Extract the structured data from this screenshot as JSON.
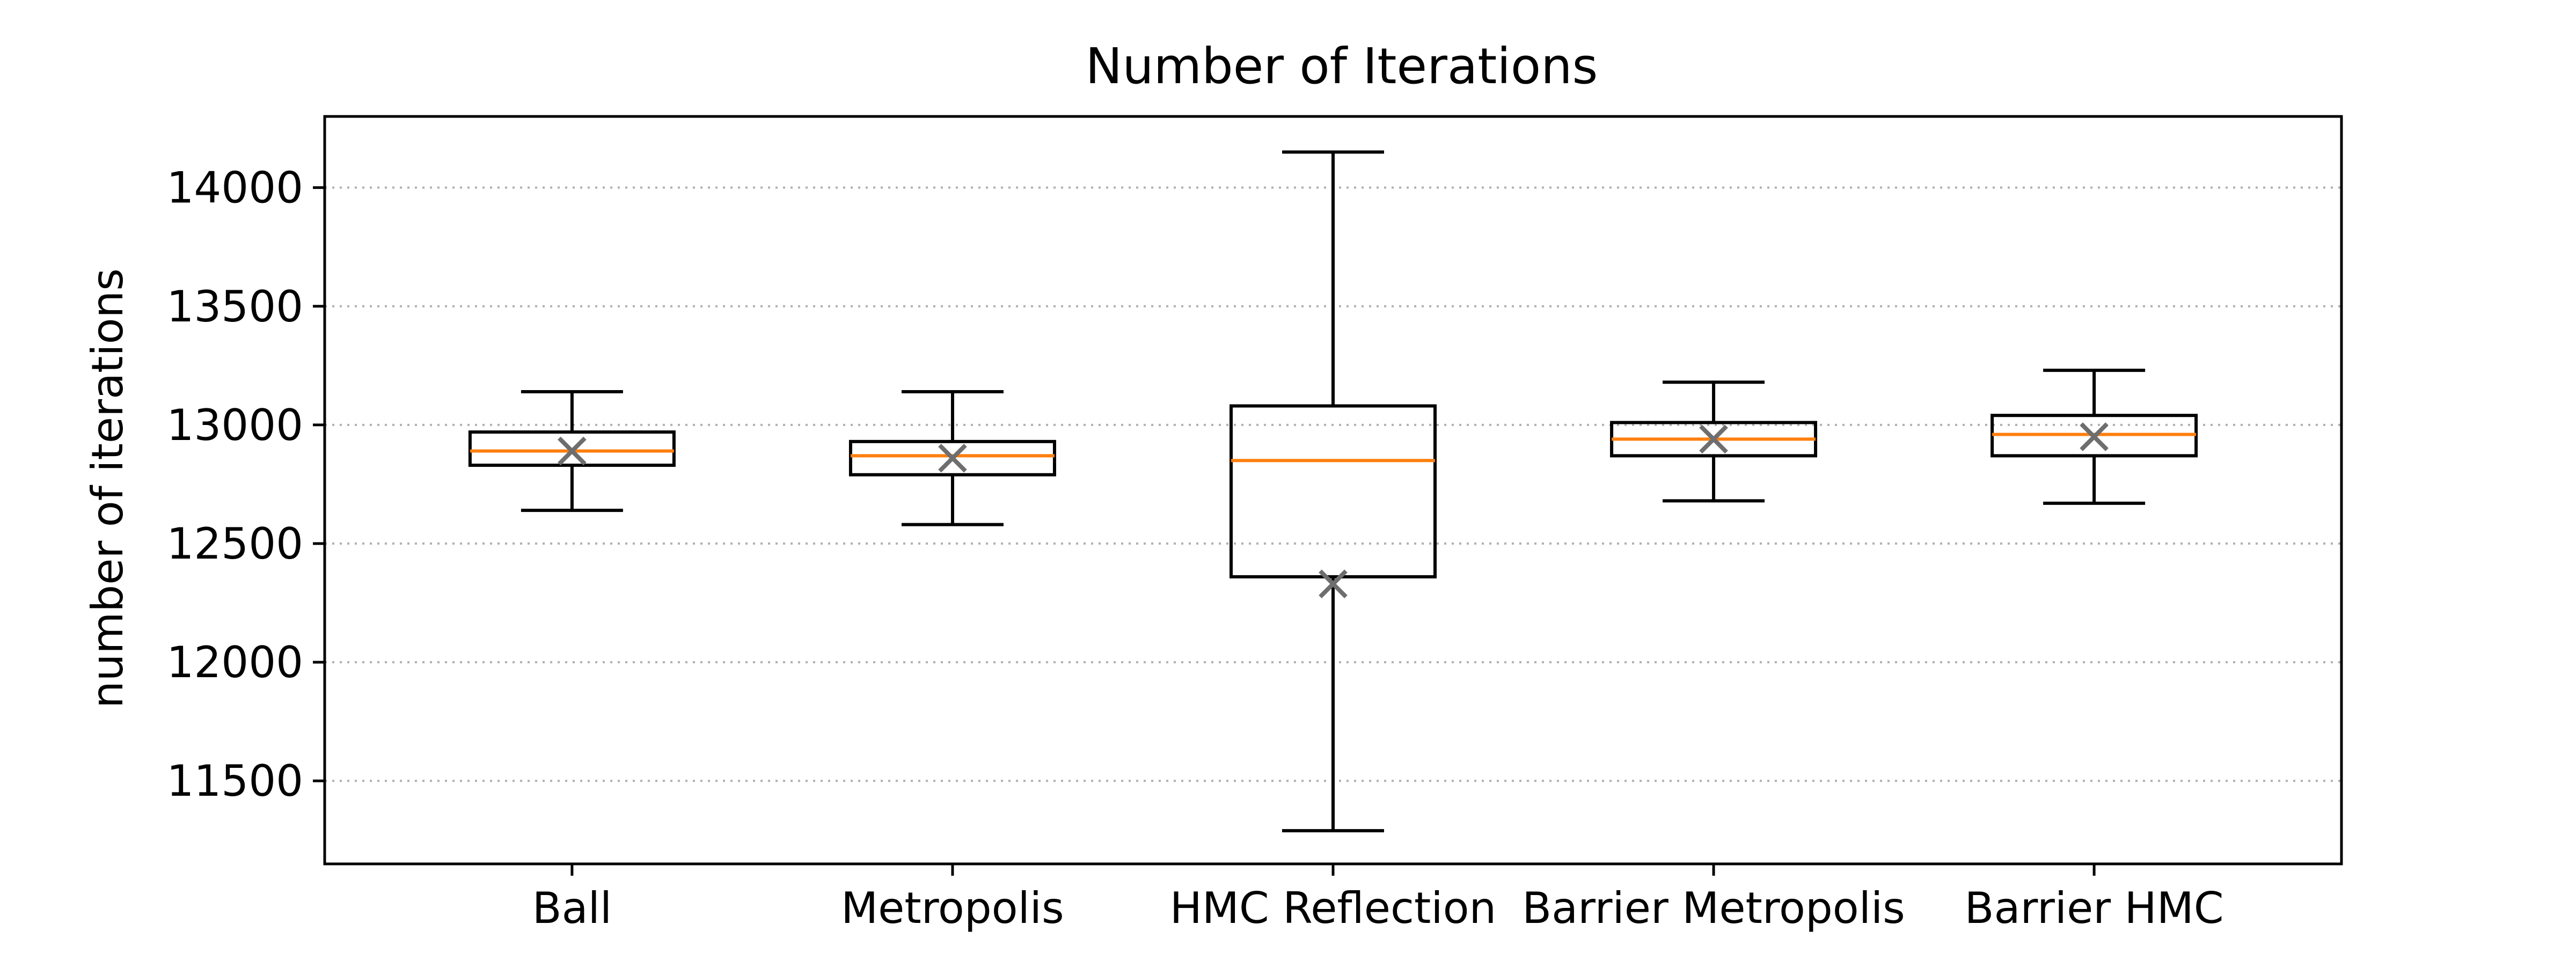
{
  "chart_data": {
    "type": "box",
    "title": "Number of Iterations",
    "xlabel": "",
    "ylabel": "number of iterations",
    "categories": [
      "Ball",
      "Metropolis",
      "HMC Reflection",
      "Barrier Metropolis",
      "Barrier HMC"
    ],
    "ylim": [
      11150,
      14300
    ],
    "yticks": [
      11500,
      12000,
      12500,
      13000,
      13500,
      14000
    ],
    "grid": {
      "y": true,
      "x": false,
      "style": "dotted"
    },
    "boxes": [
      {
        "category": "Ball",
        "whisker_low": 12640,
        "q1": 12830,
        "median": 12890,
        "q3": 12970,
        "whisker_high": 13140,
        "mean": 12890
      },
      {
        "category": "Metropolis",
        "whisker_low": 12580,
        "q1": 12790,
        "median": 12870,
        "q3": 12930,
        "whisker_high": 13140,
        "mean": 12860
      },
      {
        "category": "HMC Reflection",
        "whisker_low": 11290,
        "q1": 12360,
        "median": 12850,
        "q3": 13080,
        "whisker_high": 14150,
        "mean": 12330
      },
      {
        "category": "Barrier Metropolis",
        "whisker_low": 12680,
        "q1": 12870,
        "median": 12940,
        "q3": 13010,
        "whisker_high": 13180,
        "mean": 12940
      },
      {
        "category": "Barrier HMC",
        "whisker_low": 12670,
        "q1": 12870,
        "median": 12960,
        "q3": 13040,
        "whisker_high": 13230,
        "mean": 12950
      }
    ],
    "colors": {
      "box": "#000000",
      "median": "#ff7f0e",
      "mean_marker": "#6e6e6e",
      "grid": "#b0b0b0"
    },
    "mean_marker": "x"
  }
}
